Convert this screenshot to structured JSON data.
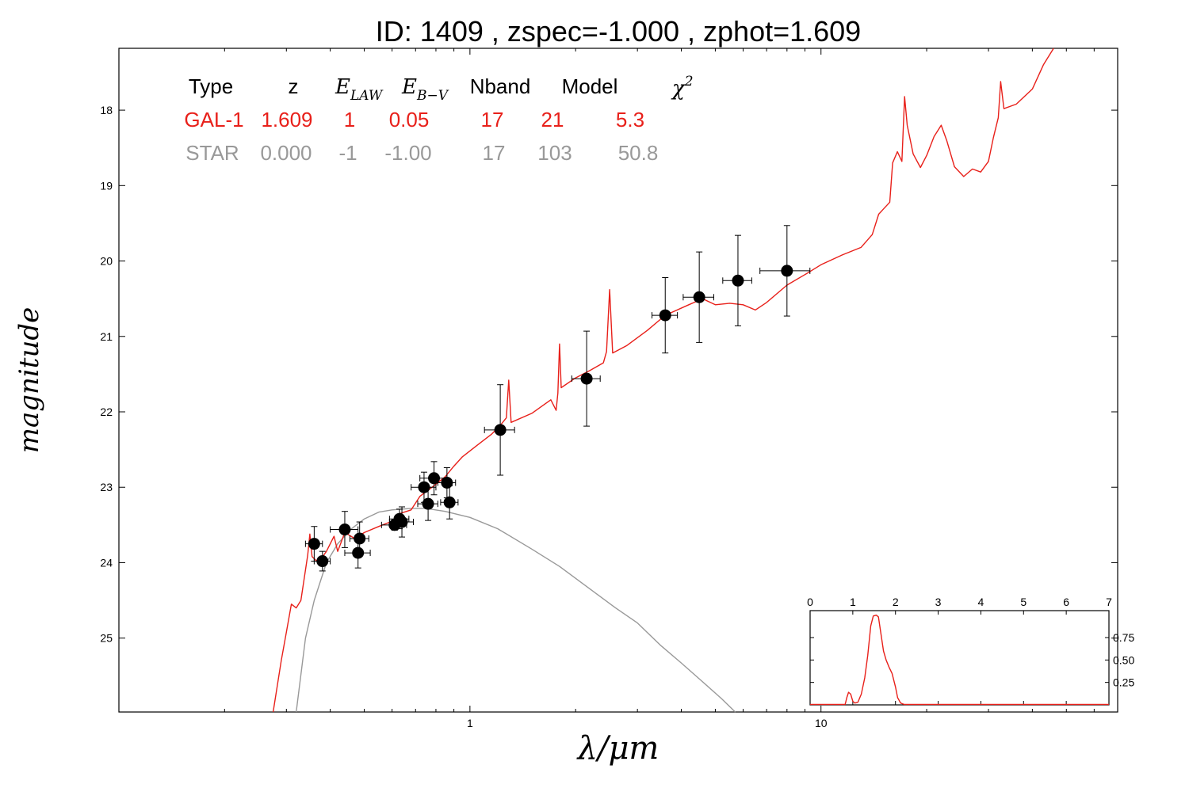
{
  "chart_data": {
    "type": "scatter",
    "title": "ID:  1409  , zspec=-1.000 , zphot=1.609",
    "xlabel": "λ/μm",
    "ylabel": "magnitude",
    "x_scale": "log",
    "xlim": [
      0.1,
      70
    ],
    "ylim": [
      25.98,
      17.18
    ],
    "x_tick_labels": [
      {
        "value": 1,
        "label": "1"
      },
      {
        "value": 10,
        "label": "10"
      }
    ],
    "y_tick_labels": [
      {
        "value": 18,
        "label": "18"
      },
      {
        "value": 19,
        "label": "19"
      },
      {
        "value": 20,
        "label": "20"
      },
      {
        "value": 21,
        "label": "21"
      },
      {
        "value": 22,
        "label": "22"
      },
      {
        "value": 23,
        "label": "23"
      },
      {
        "value": 24,
        "label": "24"
      },
      {
        "value": 25,
        "label": "25"
      }
    ],
    "legend_table": {
      "headers": [
        "Type",
        "z",
        "E_LAW",
        "E_B−V",
        "Nband",
        "Model",
        "χ²"
      ],
      "rows": [
        {
          "type": "GAL-1",
          "z": "1.609",
          "elaw": "1",
          "ebv": "0.05",
          "nband": "17",
          "model": "21",
          "chi2": "5.3",
          "color": "#e8201a"
        },
        {
          "type": "STAR",
          "z": "0.000",
          "elaw": "-1",
          "ebv": "-1.00",
          "nband": "17",
          "model": "103",
          "chi2": "50.8",
          "color": "#999999"
        }
      ]
    },
    "photometry": [
      {
        "x": 0.36,
        "y": 23.75,
        "xerr": 0.02,
        "yerr": 0.23
      },
      {
        "x": 0.38,
        "y": 23.98,
        "xerr": 0.02,
        "yerr": 0.13
      },
      {
        "x": 0.44,
        "y": 23.56,
        "xerr": 0.04,
        "yerr": 0.24
      },
      {
        "x": 0.48,
        "y": 23.87,
        "xerr": 0.04,
        "yerr": 0.2
      },
      {
        "x": 0.485,
        "y": 23.68,
        "xerr": 0.03,
        "yerr": 0.22
      },
      {
        "x": 0.61,
        "y": 23.5,
        "xerr": 0.05,
        "yerr": 0.07
      },
      {
        "x": 0.63,
        "y": 23.42,
        "xerr": 0.04,
        "yerr": 0.13
      },
      {
        "x": 0.64,
        "y": 23.46,
        "xerr": 0.05,
        "yerr": 0.2
      },
      {
        "x": 0.74,
        "y": 23.0,
        "xerr": 0.06,
        "yerr": 0.2
      },
      {
        "x": 0.76,
        "y": 23.22,
        "xerr": 0.05,
        "yerr": 0.22
      },
      {
        "x": 0.79,
        "y": 22.88,
        "xerr": 0.07,
        "yerr": 0.22
      },
      {
        "x": 0.86,
        "y": 22.94,
        "xerr": 0.05,
        "yerr": 0.2
      },
      {
        "x": 0.875,
        "y": 23.2,
        "xerr": 0.05,
        "yerr": 0.22
      },
      {
        "x": 1.22,
        "y": 22.24,
        "xerr": 0.12,
        "yerr": 0.6
      },
      {
        "x": 2.15,
        "y": 21.56,
        "xerr": 0.2,
        "yerr": 0.63
      },
      {
        "x": 3.6,
        "y": 20.72,
        "xerr": 0.3,
        "yerr": 0.5
      },
      {
        "x": 4.5,
        "y": 20.48,
        "xerr": 0.45,
        "yerr": 0.6
      },
      {
        "x": 5.8,
        "y": 20.26,
        "xerr": 0.55,
        "yerr": 0.6
      },
      {
        "x": 8.0,
        "y": 20.13,
        "xerr": 1.3,
        "yerr": 0.6
      }
    ],
    "series": [
      {
        "label": "GAL-1",
        "color": "#e8201a",
        "points": [
          [
            0.275,
            25.98
          ],
          [
            0.29,
            25.3
          ],
          [
            0.3,
            24.92
          ],
          [
            0.31,
            24.55
          ],
          [
            0.32,
            24.6
          ],
          [
            0.33,
            24.5
          ],
          [
            0.345,
            23.9
          ],
          [
            0.35,
            23.62
          ],
          [
            0.355,
            23.92
          ],
          [
            0.37,
            24.0
          ],
          [
            0.39,
            23.85
          ],
          [
            0.41,
            23.65
          ],
          [
            0.42,
            23.85
          ],
          [
            0.44,
            23.6
          ],
          [
            0.47,
            23.68
          ],
          [
            0.5,
            23.6
          ],
          [
            0.55,
            23.52
          ],
          [
            0.6,
            23.45
          ],
          [
            0.63,
            23.35
          ],
          [
            0.68,
            23.3
          ],
          [
            0.72,
            23.12
          ],
          [
            0.78,
            23.0
          ],
          [
            0.85,
            22.86
          ],
          [
            0.9,
            22.72
          ],
          [
            0.95,
            22.6
          ],
          [
            1.05,
            22.44
          ],
          [
            1.15,
            22.3
          ],
          [
            1.22,
            22.18
          ],
          [
            1.27,
            22.08
          ],
          [
            1.29,
            21.58
          ],
          [
            1.31,
            22.14
          ],
          [
            1.5,
            22.02
          ],
          [
            1.7,
            21.84
          ],
          [
            1.76,
            21.98
          ],
          [
            1.78,
            21.75
          ],
          [
            1.8,
            21.1
          ],
          [
            1.82,
            21.68
          ],
          [
            2.0,
            21.55
          ],
          [
            2.2,
            21.45
          ],
          [
            2.4,
            21.35
          ],
          [
            2.45,
            21.2
          ],
          [
            2.5,
            20.38
          ],
          [
            2.55,
            21.22
          ],
          [
            2.8,
            21.12
          ],
          [
            3.2,
            20.92
          ],
          [
            3.6,
            20.72
          ],
          [
            4.2,
            20.58
          ],
          [
            4.6,
            20.5
          ],
          [
            5.0,
            20.58
          ],
          [
            5.5,
            20.56
          ],
          [
            6.0,
            20.58
          ],
          [
            6.5,
            20.65
          ],
          [
            7.0,
            20.55
          ],
          [
            8.0,
            20.32
          ],
          [
            9.0,
            20.18
          ],
          [
            10.0,
            20.05
          ],
          [
            11.5,
            19.92
          ],
          [
            13.0,
            19.82
          ],
          [
            14.0,
            19.65
          ],
          [
            14.6,
            19.38
          ],
          [
            15.0,
            19.32
          ],
          [
            15.7,
            19.22
          ],
          [
            16.0,
            18.7
          ],
          [
            16.5,
            18.55
          ],
          [
            17.0,
            18.68
          ],
          [
            17.3,
            17.82
          ],
          [
            17.6,
            18.2
          ],
          [
            18.3,
            18.58
          ],
          [
            19.2,
            18.76
          ],
          [
            20.0,
            18.6
          ],
          [
            21.0,
            18.35
          ],
          [
            22.0,
            18.2
          ],
          [
            22.8,
            18.4
          ],
          [
            24.0,
            18.75
          ],
          [
            25.5,
            18.88
          ],
          [
            27.0,
            18.78
          ],
          [
            28.5,
            18.82
          ],
          [
            30.0,
            18.68
          ],
          [
            31.0,
            18.36
          ],
          [
            32.0,
            18.1
          ],
          [
            32.5,
            17.62
          ],
          [
            33.2,
            17.98
          ],
          [
            36.0,
            17.92
          ],
          [
            40.0,
            17.72
          ],
          [
            43.0,
            17.4
          ],
          [
            46.0,
            17.18
          ]
        ]
      },
      {
        "label": "STAR",
        "color": "#999999",
        "points": [
          [
            0.32,
            25.98
          ],
          [
            0.34,
            25.0
          ],
          [
            0.36,
            24.5
          ],
          [
            0.39,
            24.0
          ],
          [
            0.42,
            23.75
          ],
          [
            0.46,
            23.55
          ],
          [
            0.5,
            23.42
          ],
          [
            0.55,
            23.33
          ],
          [
            0.6,
            23.3
          ],
          [
            0.68,
            23.28
          ],
          [
            0.75,
            23.28
          ],
          [
            0.85,
            23.32
          ],
          [
            1.0,
            23.4
          ],
          [
            1.2,
            23.55
          ],
          [
            1.5,
            23.82
          ],
          [
            1.8,
            24.05
          ],
          [
            2.2,
            24.35
          ],
          [
            2.6,
            24.6
          ],
          [
            3.0,
            24.8
          ],
          [
            3.5,
            25.1
          ],
          [
            4.0,
            25.33
          ],
          [
            4.6,
            25.58
          ],
          [
            5.2,
            25.8
          ],
          [
            5.7,
            25.98
          ]
        ]
      }
    ],
    "inset": {
      "type": "line",
      "color": "#e8201a",
      "xlim": [
        0,
        7
      ],
      "ylim": [
        0,
        1.05
      ],
      "x_tick_labels": [
        "0",
        "1",
        "2",
        "3",
        "4",
        "5",
        "6",
        "7"
      ],
      "y_tick_labels": [
        "0.25",
        "0.50",
        "0.75"
      ],
      "y_ticks": [
        0.25,
        0.5,
        0.75
      ],
      "points": [
        [
          0,
          0.005
        ],
        [
          0.82,
          0.005
        ],
        [
          0.86,
          0.08
        ],
        [
          0.9,
          0.14
        ],
        [
          0.95,
          0.12
        ],
        [
          1.0,
          0.04
        ],
        [
          1.05,
          0.02
        ],
        [
          1.12,
          0.03
        ],
        [
          1.2,
          0.12
        ],
        [
          1.28,
          0.3
        ],
        [
          1.35,
          0.55
        ],
        [
          1.42,
          0.88
        ],
        [
          1.48,
          0.99
        ],
        [
          1.55,
          1.0
        ],
        [
          1.6,
          0.98
        ],
        [
          1.65,
          0.82
        ],
        [
          1.72,
          0.6
        ],
        [
          1.78,
          0.5
        ],
        [
          1.85,
          0.42
        ],
        [
          1.92,
          0.35
        ],
        [
          2.0,
          0.2
        ],
        [
          2.05,
          0.08
        ],
        [
          2.12,
          0.02
        ],
        [
          2.2,
          0.005
        ],
        [
          7.0,
          0.005
        ]
      ]
    }
  }
}
